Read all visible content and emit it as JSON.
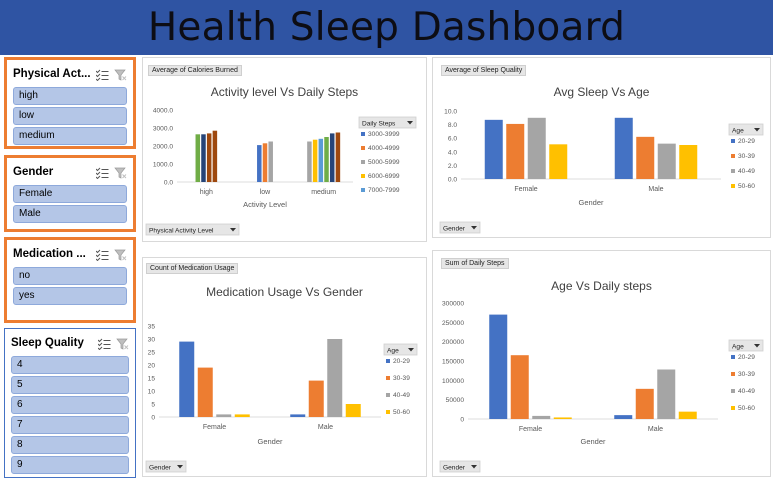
{
  "dashboard": {
    "title": "Health Sleep Dashboard"
  },
  "slicers": [
    {
      "id": "physical",
      "title": "Physical Act...",
      "items": [
        "high",
        "low",
        "medium"
      ]
    },
    {
      "id": "gender",
      "title": "Gender",
      "items": [
        "Female",
        "Male"
      ]
    },
    {
      "id": "medication",
      "title": "Medication ...",
      "items": [
        "no",
        "yes"
      ]
    },
    {
      "id": "sleep",
      "title": "Sleep Quality",
      "items": [
        "4",
        "5",
        "6",
        "7",
        "8",
        "9"
      ]
    }
  ],
  "icons": {
    "multiselect": "multi-select-icon",
    "clear_filter": "clear-filter-icon",
    "dropdown": "dropdown-arrow-icon"
  },
  "colors": {
    "20-29": "#4472c4",
    "30-39": "#ed7d31",
    "40-49": "#a5a5a5",
    "50-60": "#ffc000",
    "7000-7999": "#5b9bd5",
    "green": "#70ad47",
    "darkblue": "#264478",
    "brown": "#9e480e"
  },
  "chart_data": [
    {
      "id": "activity",
      "type": "bar",
      "value_button": "Average of Calories Burned",
      "title": "Activity level Vs Daily Steps",
      "xlabel": "Activity Level",
      "ylabel": "",
      "axis_button": "Physical Activity Level",
      "legend_button": "Daily Steps",
      "legend_position": "right",
      "ylim": [
        0,
        4000
      ],
      "yticks": [
        "4000.0",
        "3000.0",
        "2000.0",
        "1000.0",
        "0.0"
      ],
      "grid": false,
      "categories": [
        "high",
        "low",
        "medium"
      ],
      "legend_entries": [
        {
          "name": "3000-3999",
          "color": "#4472c4"
        },
        {
          "name": "4000-4999",
          "color": "#ed7d31"
        },
        {
          "name": "5000-5999",
          "color": "#a5a5a5"
        },
        {
          "name": "6000-6999",
          "color": "#ffc000"
        },
        {
          "name": "7000-7999",
          "color": "#5b9bd5"
        }
      ],
      "groups": [
        {
          "category": "high",
          "bars": [
            {
              "value": 2650,
              "color": "#70ad47"
            },
            {
              "value": 2650,
              "color": "#264478"
            },
            {
              "value": 2700,
              "color": "#9e480e"
            },
            {
              "value": 2850,
              "color": "#9e480e"
            }
          ]
        },
        {
          "category": "low",
          "bars": [
            {
              "value": 2050,
              "color": "#4472c4"
            },
            {
              "value": 2150,
              "color": "#ed7d31"
            },
            {
              "value": 2250,
              "color": "#a5a5a5"
            }
          ]
        },
        {
          "category": "medium",
          "bars": [
            {
              "value": 2250,
              "color": "#a5a5a5"
            },
            {
              "value": 2350,
              "color": "#ffc000"
            },
            {
              "value": 2400,
              "color": "#5b9bd5"
            },
            {
              "value": 2500,
              "color": "#70ad47"
            },
            {
              "value": 2700,
              "color": "#264478"
            },
            {
              "value": 2750,
              "color": "#9e480e"
            }
          ]
        }
      ]
    },
    {
      "id": "avgsleep",
      "type": "bar",
      "value_button": "Average of Sleep Quality",
      "title": "Avg Sleep Vs Age",
      "xlabel": "Gender",
      "ylabel": "",
      "axis_button": "Gender",
      "legend_button": "Age",
      "legend_position": "right",
      "ylim": [
        0,
        10
      ],
      "yticks": [
        "10.0",
        "8.0",
        "6.0",
        "4.0",
        "2.0",
        "0.0"
      ],
      "grid": false,
      "categories": [
        "Female",
        "Male"
      ],
      "series": [
        {
          "name": "20-29",
          "color": "#4472c4",
          "values": [
            8.7,
            9.0
          ]
        },
        {
          "name": "30-39",
          "color": "#ed7d31",
          "values": [
            8.1,
            6.2
          ]
        },
        {
          "name": "40-49",
          "color": "#a5a5a5",
          "values": [
            9.0,
            5.2
          ]
        },
        {
          "name": "50-60",
          "color": "#ffc000",
          "values": [
            5.1,
            5.0
          ]
        }
      ]
    },
    {
      "id": "medication",
      "type": "bar",
      "value_button": "Count of Medication Usage",
      "title": "Medication Usage Vs Gender",
      "xlabel": "Gender",
      "ylabel": "",
      "axis_button": "Gender",
      "legend_button": "Age",
      "legend_position": "right",
      "ylim": [
        0,
        35
      ],
      "yticks": [
        "35",
        "30",
        "25",
        "20",
        "15",
        "10",
        "5",
        "0"
      ],
      "grid": false,
      "categories": [
        "Female",
        "Male"
      ],
      "series": [
        {
          "name": "20-29",
          "color": "#4472c4",
          "values": [
            29,
            1
          ]
        },
        {
          "name": "30-39",
          "color": "#ed7d31",
          "values": [
            19,
            14
          ]
        },
        {
          "name": "40-49",
          "color": "#a5a5a5",
          "values": [
            1,
            30
          ]
        },
        {
          "name": "50-60",
          "color": "#ffc000",
          "values": [
            1,
            5
          ]
        }
      ]
    },
    {
      "id": "agesteps",
      "type": "bar",
      "value_button": "Sum of Daily Steps",
      "title": "Age Vs Daily steps",
      "xlabel": "Gender",
      "ylabel": "",
      "axis_button": "Gender",
      "legend_button": "Age",
      "legend_position": "right",
      "ylim": [
        0,
        300000
      ],
      "yticks": [
        "300000",
        "250000",
        "200000",
        "150000",
        "100000",
        "50000",
        "0"
      ],
      "grid": false,
      "categories": [
        "Female",
        "Male"
      ],
      "series": [
        {
          "name": "20-29",
          "color": "#4472c4",
          "values": [
            270000,
            10000
          ]
        },
        {
          "name": "30-39",
          "color": "#ed7d31",
          "values": [
            165000,
            78000
          ]
        },
        {
          "name": "40-49",
          "color": "#a5a5a5",
          "values": [
            8000,
            128000
          ]
        },
        {
          "name": "50-60",
          "color": "#ffc000",
          "values": [
            4000,
            19000
          ]
        }
      ]
    }
  ]
}
